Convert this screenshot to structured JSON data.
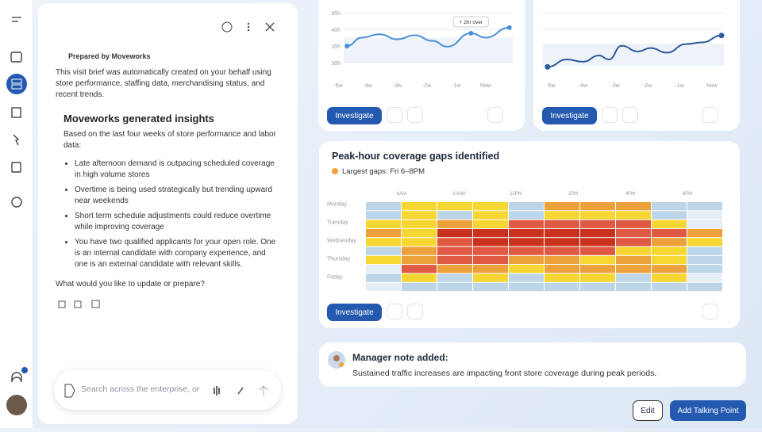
{
  "chat": {
    "prepared_by": "Prepared by Moveworks",
    "intro": "This visit brief was automatically created on your behalf using store performance, staffing data, merchandising status, and recent trends.",
    "heading": "Moveworks generated insights",
    "lead": "Based on the last four weeks of store performance and labor data:",
    "bullets": [
      "Late afternoon demand is outpacing scheduled coverage in high volume stores",
      "Overtime is being used strategically but trending upward near weekends",
      "Short term schedule adjustments could reduce overtime while improving coverage",
      "You have two qualified applicants for your open role. One is an internal candidate with company experience, and one is an external candidate with relevant skills."
    ],
    "question": "What would you like to update or prepare?",
    "search_placeholder": "Search across the enterprise, or"
  },
  "charts": [
    {
      "chart_data": {
        "type": "line",
        "x": [
          -4.7,
          -4.2,
          -3.6,
          -3.0,
          -2.4,
          -1.8,
          -1.3,
          -0.5,
          0.0,
          0.8
        ],
        "values": [
          35,
          37.5,
          38.5,
          37,
          38.2,
          36.5,
          34.8,
          38.8,
          37.5,
          40.5
        ],
        "color": "#4a8fd9",
        "xlim": [
          -5.27,
          1.05
        ],
        "ylim": [
          27.4,
          46.4
        ],
        "xticks": [
          {
            "value": -5,
            "label": "-5w"
          },
          {
            "value": -4,
            "label": "-4w"
          },
          {
            "value": -3,
            "label": "-3w"
          },
          {
            "value": -2,
            "label": "-2w"
          },
          {
            "value": -1,
            "label": "-1w"
          },
          {
            "value": 0,
            "label": "Now"
          }
        ],
        "yticks": [
          {
            "value": 45,
            "label": "45h"
          },
          {
            "value": 40,
            "label": "40h"
          },
          {
            "value": 35,
            "label": "35h"
          },
          {
            "value": 30,
            "label": "30h"
          }
        ],
        "annotation": "+ 2hr over"
      },
      "button": "Investigate"
    },
    {
      "chart_data": {
        "type": "line",
        "x": [
          -5.1,
          -4.5,
          -4.0,
          -3.5,
          -3.2,
          -2.8,
          -2.3,
          -1.9,
          -1.4,
          -0.8,
          -0.3,
          0.3
        ],
        "values": [
          5,
          18,
          14,
          25,
          18,
          42,
          32,
          38,
          30,
          45,
          48,
          60
        ],
        "color": "#2e5a9e",
        "xlim": [
          -5.17,
          0.62
        ],
        "ylim": [
          0,
          100
        ],
        "xticks": [
          {
            "value": -5,
            "label": "-5w"
          },
          {
            "value": -4,
            "label": "-4w"
          },
          {
            "value": -3,
            "label": "-3w"
          },
          {
            "value": -2,
            "label": "-2w"
          },
          {
            "value": -1,
            "label": "-1w"
          },
          {
            "value": 0,
            "label": "Now"
          }
        ]
      },
      "button": "Investigate"
    }
  ],
  "heatmap": {
    "chart_data": {
      "type": "heatmap",
      "title": "Peak-hour coverage gaps identified",
      "subtitle": "Largest gaps: Fri 6–8PM",
      "col_labels": [
        "6AM",
        "10AM",
        "12PM",
        "2PM",
        "4PM",
        "6PM"
      ],
      "row_labels": [
        "Monday",
        "Tuesday",
        "Wednesday",
        "Thursday",
        "Friday"
      ],
      "scale": [
        "#bcd5e8",
        "#e4eef6",
        "#f6d633",
        "#eca13a",
        "#e05a43",
        "#c8321e"
      ],
      "cells": [
        [
          0,
          2,
          2,
          2,
          0,
          3,
          3,
          3,
          0,
          0
        ],
        [
          0,
          2,
          0,
          2,
          0,
          2,
          2,
          2,
          0,
          1
        ],
        [
          2,
          2,
          3,
          2,
          4,
          4,
          4,
          4,
          2,
          1
        ],
        [
          3,
          2,
          5,
          5,
          5,
          5,
          5,
          4,
          4,
          3
        ],
        [
          2,
          2,
          4,
          5,
          5,
          5,
          5,
          4,
          3,
          2
        ],
        [
          0,
          3,
          4,
          4,
          4,
          4,
          4,
          2,
          2,
          0
        ],
        [
          2,
          3,
          4,
          4,
          3,
          3,
          2,
          3,
          2,
          0
        ],
        [
          1,
          4,
          3,
          3,
          2,
          3,
          3,
          3,
          3,
          0
        ],
        [
          0,
          2,
          0,
          2,
          0,
          2,
          2,
          0,
          2,
          1
        ],
        [
          1,
          0,
          0,
          0,
          0,
          0,
          0,
          0,
          0,
          0
        ]
      ]
    },
    "button": "Investigate"
  },
  "note": {
    "title": "Manager note added:",
    "text": "Sustained traffic increases are impacting front store coverage during peak periods."
  },
  "actions": {
    "edit": "Edit",
    "add": "Add Talking Point"
  }
}
